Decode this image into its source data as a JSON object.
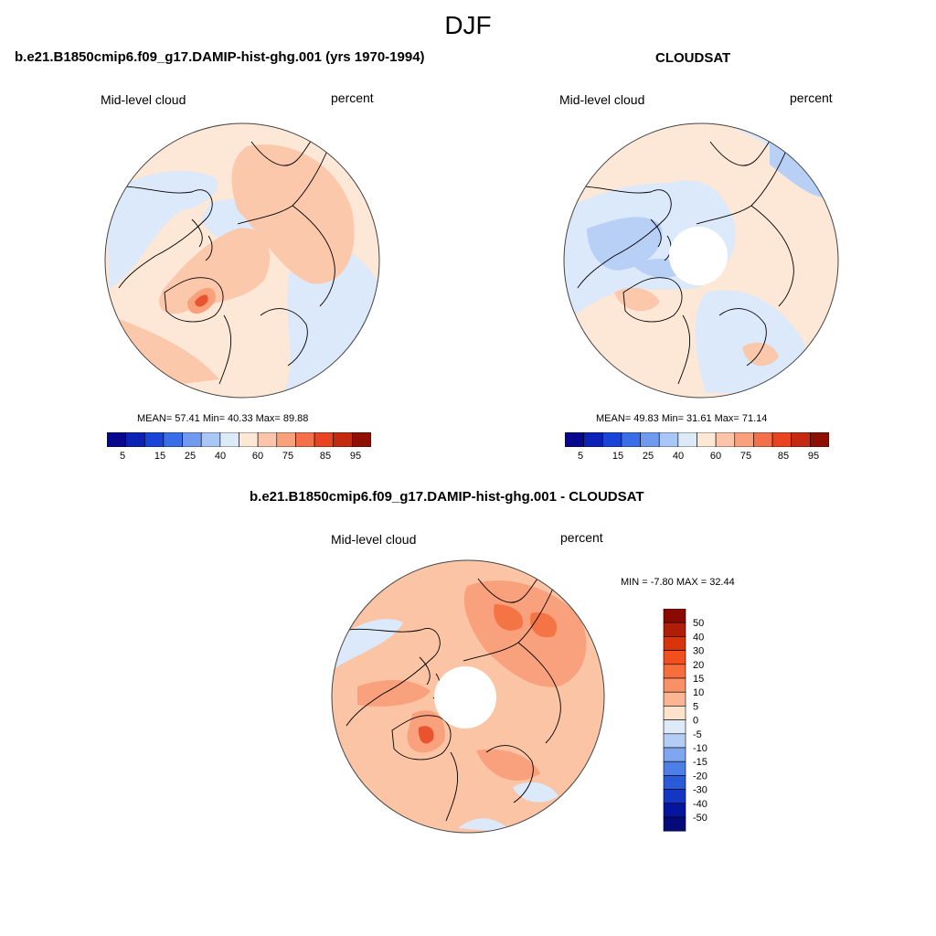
{
  "figure": {
    "title": "DJF"
  },
  "panels": [
    {
      "id": "model",
      "title": "b.e21.B1850cmip6.f09_g17.DAMIP-hist-ghg.001 (yrs 1970-1994)",
      "variable": "Mid-level cloud",
      "units": "percent",
      "stats": "MEAN=  57.41  Min=  40.33  Max=  89.88",
      "mean": 57.41,
      "min": 40.33,
      "max": 89.88,
      "has_polar_hole": false
    },
    {
      "id": "obs",
      "title": "CLOUDSAT",
      "variable": "Mid-level cloud",
      "units": "percent",
      "stats": "MEAN=  49.83  Min=  31.61  Max=  71.14",
      "mean": 49.83,
      "min": 31.61,
      "max": 71.14,
      "has_polar_hole": true
    },
    {
      "id": "diff",
      "title": "b.e21.B1850cmip6.f09_g17.DAMIP-hist-ghg.001 - CLOUDSAT",
      "variable": "Mid-level cloud",
      "units": "percent",
      "stats": "MIN =  -7.80 MAX =  32.44",
      "min": -7.8,
      "max": 32.44,
      "has_polar_hole": true
    }
  ],
  "colorbars": {
    "abs": {
      "labels": [
        "5",
        "15",
        "25",
        "40",
        "60",
        "75",
        "85",
        "95"
      ],
      "colors": [
        "#08088c",
        "#0c22b4",
        "#1a44d8",
        "#3a6ee8",
        "#6f9af0",
        "#a8c6f6",
        "#dceaf8",
        "#fde8d6",
        "#fcc5ab",
        "#f9a07d",
        "#f4704a",
        "#e84422",
        "#c42a10",
        "#8e1004"
      ]
    },
    "diff": {
      "labels": [
        "50",
        "40",
        "30",
        "20",
        "15",
        "10",
        "5",
        "0",
        "-5",
        "-10",
        "-15",
        "-20",
        "-30",
        "-40",
        "-50"
      ],
      "colors": [
        "#8a0a02",
        "#b01e08",
        "#d8340c",
        "#f24e1e",
        "#f76d3c",
        "#f99068",
        "#fbb592",
        "#fde3cc",
        "#deeaf8",
        "#b3cdf4",
        "#7fa6ee",
        "#4d7fe6",
        "#2a5ad8",
        "#1436c2",
        "#06159e",
        "#040a7a"
      ]
    }
  },
  "map_colors": {
    "abs_light_warm": "#fde7d6",
    "abs_warm": "#fbc8ac",
    "abs_hot": "#f9a07d",
    "abs_very_hot": "#e8542e",
    "abs_light_cool": "#dbe9fa",
    "abs_cool": "#b8d0f5",
    "diff_warm": "#f9a07d",
    "diff_hot": "#f47445",
    "diff_light": "#fbc4a5"
  }
}
